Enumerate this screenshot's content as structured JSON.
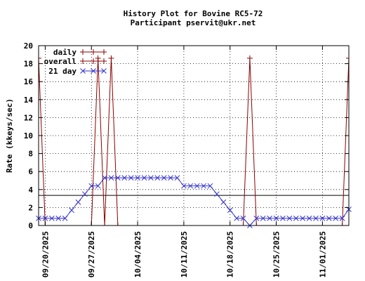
{
  "chart_data": {
    "type": "line",
    "title": "History Plot for Bovine RC5-72",
    "subtitle": "Participant pservit@ukr.net",
    "xlabel": "",
    "ylabel": "Rate (kkeys/sec)",
    "ylim": [
      0,
      20
    ],
    "yticks": [
      0,
      2,
      4,
      6,
      8,
      10,
      12,
      14,
      16,
      18,
      20
    ],
    "xlim": [
      "2025-09-19",
      "2025-11-05"
    ],
    "xticks": [
      "2025-09-20",
      "2025-09-27",
      "2025-10-04",
      "2025-10-11",
      "2025-10-18",
      "2025-10-25",
      "2025-11-01"
    ],
    "xtick_labels": [
      "09/20/2025",
      "09/27/2025",
      "10/04/2025",
      "10/11/2025",
      "10/18/2025",
      "10/25/2025",
      "11/01/2025"
    ],
    "grid": true,
    "legend_position": "top-left",
    "colors": {
      "line": "#8b0000",
      "overall": "#000000",
      "marker": "#3333cc"
    },
    "series": [
      {
        "name": "daily",
        "style": "line-plus",
        "points": [
          [
            "2025-09-19",
            18.6
          ],
          [
            "2025-09-20",
            0
          ],
          [
            "2025-09-27",
            0
          ],
          [
            "2025-09-28",
            18.6
          ],
          [
            "2025-09-29",
            0
          ],
          [
            "2025-09-30",
            18.6
          ],
          [
            "2025-10-01",
            0
          ],
          [
            "2025-10-01",
            -1
          ],
          [
            "2025-10-20",
            -1
          ],
          [
            "2025-10-20",
            0
          ],
          [
            "2025-10-21",
            18.6
          ],
          [
            "2025-10-22",
            0
          ],
          [
            "2025-11-04",
            0
          ],
          [
            "2025-11-05",
            18.6
          ]
        ]
      },
      {
        "name": "overall",
        "style": "line",
        "value": 3.35
      },
      {
        "name": "21 day",
        "style": "line-x",
        "points": [
          [
            "2025-09-19",
            0.8
          ],
          [
            "2025-09-20",
            0.8
          ],
          [
            "2025-09-21",
            0.8
          ],
          [
            "2025-09-22",
            0.8
          ],
          [
            "2025-09-23",
            0.8
          ],
          [
            "2025-09-24",
            1.7
          ],
          [
            "2025-09-25",
            2.6
          ],
          [
            "2025-09-26",
            3.5
          ],
          [
            "2025-09-27",
            4.4
          ],
          [
            "2025-09-28",
            4.4
          ],
          [
            "2025-09-29",
            5.3
          ],
          [
            "2025-09-30",
            5.3
          ],
          [
            "2025-10-01",
            5.3
          ],
          [
            "2025-10-02",
            5.3
          ],
          [
            "2025-10-03",
            5.3
          ],
          [
            "2025-10-04",
            5.3
          ],
          [
            "2025-10-05",
            5.3
          ],
          [
            "2025-10-06",
            5.3
          ],
          [
            "2025-10-07",
            5.3
          ],
          [
            "2025-10-08",
            5.3
          ],
          [
            "2025-10-09",
            5.3
          ],
          [
            "2025-10-10",
            5.3
          ],
          [
            "2025-10-11",
            4.4
          ],
          [
            "2025-10-12",
            4.4
          ],
          [
            "2025-10-13",
            4.4
          ],
          [
            "2025-10-14",
            4.4
          ],
          [
            "2025-10-15",
            4.4
          ],
          [
            "2025-10-16",
            3.5
          ],
          [
            "2025-10-17",
            2.6
          ],
          [
            "2025-10-18",
            1.7
          ],
          [
            "2025-10-19",
            0.8
          ],
          [
            "2025-10-20",
            0.8
          ],
          [
            "2025-10-21",
            0
          ],
          [
            "2025-10-22",
            0.8
          ],
          [
            "2025-10-23",
            0.8
          ],
          [
            "2025-10-24",
            0.8
          ],
          [
            "2025-10-25",
            0.8
          ],
          [
            "2025-10-26",
            0.8
          ],
          [
            "2025-10-27",
            0.8
          ],
          [
            "2025-10-28",
            0.8
          ],
          [
            "2025-10-29",
            0.8
          ],
          [
            "2025-10-30",
            0.8
          ],
          [
            "2025-10-31",
            0.8
          ],
          [
            "2025-11-01",
            0.8
          ],
          [
            "2025-11-02",
            0.8
          ],
          [
            "2025-11-03",
            0.8
          ],
          [
            "2025-11-04",
            0.8
          ],
          [
            "2025-11-05",
            1.8
          ]
        ]
      }
    ]
  }
}
